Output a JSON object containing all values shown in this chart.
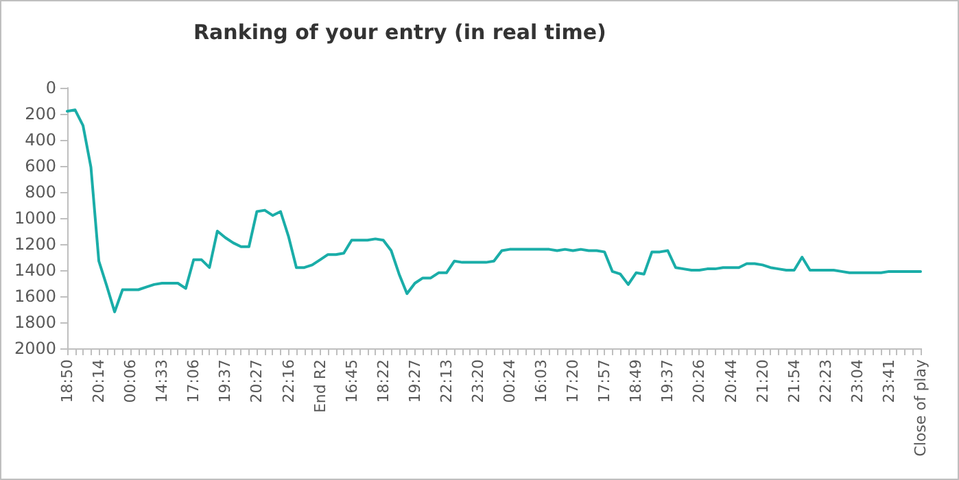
{
  "chart_data": {
    "type": "line",
    "title": "Ranking of your entry (in real time)",
    "categories": [
      "18:50",
      null,
      null,
      null,
      "20:14",
      null,
      null,
      null,
      "00:06",
      null,
      null,
      null,
      "14:33",
      null,
      null,
      null,
      "17:06",
      null,
      null,
      null,
      "19:37",
      null,
      null,
      null,
      "20:27",
      null,
      null,
      null,
      "22:16",
      null,
      null,
      null,
      "End R2",
      null,
      null,
      null,
      "16:45",
      null,
      null,
      null,
      "18:22",
      null,
      null,
      null,
      "19:27",
      null,
      null,
      null,
      "22:13",
      null,
      null,
      null,
      "23:20",
      null,
      null,
      null,
      "00:24",
      null,
      null,
      null,
      "16:03",
      null,
      null,
      null,
      "17:20",
      null,
      null,
      null,
      "17:57",
      null,
      null,
      null,
      "18:49",
      null,
      null,
      null,
      "19:37",
      null,
      null,
      null,
      "20:26",
      null,
      null,
      null,
      "20:44",
      null,
      null,
      null,
      "21:20",
      null,
      null,
      null,
      "21:54",
      null,
      null,
      null,
      "22:23",
      null,
      null,
      null,
      "23:04",
      null,
      null,
      null,
      "23:41",
      null,
      null,
      null,
      "Close of play"
    ],
    "series": [
      {
        "color": "#1aada8",
        "values": [
          180,
          170,
          290,
          610,
          1330,
          1520,
          1720,
          1550,
          1550,
          1550,
          1530,
          1510,
          1500,
          1500,
          1500,
          1540,
          1320,
          1320,
          1380,
          1100,
          1150,
          1190,
          1220,
          1220,
          950,
          940,
          980,
          950,
          1140,
          1380,
          1380,
          1360,
          1320,
          1280,
          1280,
          1270,
          1170,
          1170,
          1170,
          1160,
          1170,
          1250,
          1430,
          1580,
          1500,
          1460,
          1460,
          1420,
          1420,
          1330,
          1340,
          1340,
          1340,
          1340,
          1330,
          1250,
          1240,
          1240,
          1240,
          1240,
          1240,
          1240,
          1250,
          1240,
          1250,
          1240,
          1250,
          1250,
          1260,
          1410,
          1430,
          1510,
          1420,
          1430,
          1260,
          1260,
          1250,
          1380,
          1390,
          1400,
          1400,
          1390,
          1390,
          1380,
          1380,
          1380,
          1350,
          1350,
          1360,
          1380,
          1390,
          1400,
          1400,
          1300,
          1400,
          1400,
          1400,
          1400,
          1410,
          1420,
          1420,
          1420,
          1420,
          1420,
          1410,
          1410,
          1410,
          1410,
          1410
        ]
      }
    ],
    "ylim": [
      2000,
      0
    ],
    "yticks": [
      0,
      200,
      400,
      600,
      800,
      1000,
      1200,
      1400,
      1600,
      1800,
      2000
    ],
    "grid": false,
    "marker": "none",
    "line_style": "solid"
  }
}
